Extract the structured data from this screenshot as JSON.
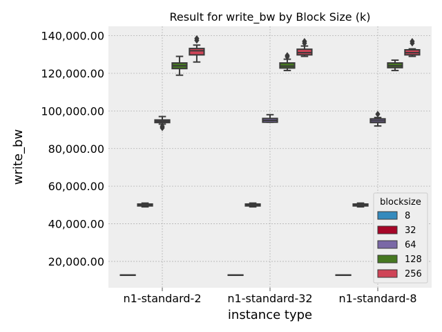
{
  "chart_data": {
    "type": "box",
    "title": "Result for write_bw by Block Size (k)",
    "xlabel": "instance type",
    "ylabel": "write_bw",
    "categories": [
      "n1-standard-2",
      "n1-standard-32",
      "n1-standard-8"
    ],
    "ylim": [
      6000,
      145000
    ],
    "yticks": [
      20000,
      40000,
      60000,
      80000,
      100000,
      120000,
      140000
    ],
    "ytick_labels": [
      "20,000.00",
      "40,000.00",
      "60,000.00",
      "80,000.00",
      "100,000.00",
      "120,000.00",
      "140,000.00"
    ],
    "grid": true,
    "legend": {
      "title": "blocksize",
      "placement": "lower-right"
    },
    "series": [
      {
        "name": "8",
        "color": "#348ABD",
        "boxes": [
          {
            "min": 12800,
            "q1": 12800,
            "median": 12800,
            "q3": 12800,
            "max": 12800,
            "outliers": []
          },
          {
            "min": 12800,
            "q1": 12800,
            "median": 12800,
            "q3": 12800,
            "max": 12800,
            "outliers": []
          },
          {
            "min": 12800,
            "q1": 12800,
            "median": 12800,
            "q3": 12800,
            "max": 12800,
            "outliers": []
          }
        ]
      },
      {
        "name": "32",
        "color": "#A60628",
        "boxes": [
          {
            "min": 49000,
            "q1": 49500,
            "median": 50000,
            "q3": 50500,
            "max": 51000,
            "outliers": []
          },
          {
            "min": 49000,
            "q1": 49500,
            "median": 50000,
            "q3": 50500,
            "max": 51000,
            "outliers": []
          },
          {
            "min": 49000,
            "q1": 49500,
            "median": 50000,
            "q3": 50500,
            "max": 51000,
            "outliers": []
          }
        ]
      },
      {
        "name": "64",
        "color": "#7A68A6",
        "boxes": [
          {
            "min": 93000,
            "q1": 93800,
            "median": 94500,
            "q3": 95200,
            "max": 97000,
            "outliers": [
              91000,
              91800
            ]
          },
          {
            "min": 94000,
            "q1": 94000,
            "median": 95000,
            "q3": 96000,
            "max": 98000,
            "outliers": []
          },
          {
            "min": 92000,
            "q1": 93800,
            "median": 94800,
            "q3": 95800,
            "max": 96500,
            "outliers": [
              98300
            ]
          }
        ]
      },
      {
        "name": "128",
        "color": "#467821",
        "boxes": [
          {
            "min": 119000,
            "q1": 122500,
            "median": 124000,
            "q3": 125500,
            "max": 129000,
            "outliers": []
          },
          {
            "min": 121500,
            "q1": 122800,
            "median": 123800,
            "q3": 125500,
            "max": 127500,
            "outliers": [
              128800,
              129500
            ]
          },
          {
            "min": 121500,
            "q1": 123000,
            "median": 124000,
            "q3": 125500,
            "max": 127000,
            "outliers": []
          }
        ]
      },
      {
        "name": "256",
        "color": "#CF4457",
        "boxes": [
          {
            "min": 126000,
            "q1": 129800,
            "median": 132000,
            "q3": 133200,
            "max": 135000,
            "outliers": [
              137500,
              138500
            ]
          },
          {
            "min": 129000,
            "q1": 129800,
            "median": 131000,
            "q3": 132800,
            "max": 134500,
            "outliers": [
              136000,
              137000
            ]
          },
          {
            "min": 129000,
            "q1": 129800,
            "median": 131000,
            "q3": 132500,
            "max": 133000,
            "outliers": [
              136000,
              137000
            ]
          }
        ]
      }
    ]
  }
}
